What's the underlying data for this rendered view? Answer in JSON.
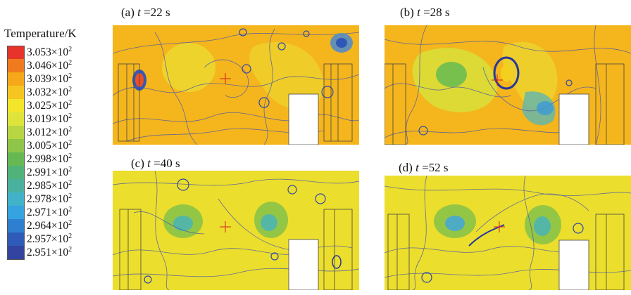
{
  "legend": {
    "title": "Temperature/K",
    "levels": [
      {
        "mantissa": "3.053",
        "exp": "2",
        "color": "#e8332a"
      },
      {
        "mantissa": "3.046",
        "exp": "2",
        "color": "#f07a1e"
      },
      {
        "mantissa": "3.039",
        "exp": "2",
        "color": "#f7a81a"
      },
      {
        "mantissa": "3.032",
        "exp": "2",
        "color": "#f5c622"
      },
      {
        "mantissa": "3.025",
        "exp": "2",
        "color": "#f3e62a"
      },
      {
        "mantissa": "3.019",
        "exp": "2",
        "color": "#dfe43a"
      },
      {
        "mantissa": "3.012",
        "exp": "2",
        "color": "#b7d642"
      },
      {
        "mantissa": "3.005",
        "exp": "2",
        "color": "#8fc548"
      },
      {
        "mantissa": "2.998",
        "exp": "2",
        "color": "#66b952"
      },
      {
        "mantissa": "2.991",
        "exp": "2",
        "color": "#51b279"
      },
      {
        "mantissa": "2.985",
        "exp": "2",
        "color": "#49b19e"
      },
      {
        "mantissa": "2.978",
        "exp": "2",
        "color": "#41b2c8"
      },
      {
        "mantissa": "2.971",
        "exp": "2",
        "color": "#34a3e0"
      },
      {
        "mantissa": "2.964",
        "exp": "2",
        "color": "#2e7fd0"
      },
      {
        "mantissa": "2.957",
        "exp": "2",
        "color": "#2f5ab8"
      },
      {
        "mantissa": "2.951",
        "exp": "2",
        "color": "#3344a0"
      }
    ]
  },
  "panels": [
    {
      "prefix": "(a) ",
      "var": "t",
      "value": " =22 s",
      "background": "#f5b51c"
    },
    {
      "prefix": "(b) ",
      "var": "t",
      "value": " =28 s",
      "background": "#f5b51c"
    },
    {
      "prefix": "(c) ",
      "var": "t",
      "value": " =40 s",
      "background": "#ecde2c"
    },
    {
      "prefix": "(d) ",
      "var": "t",
      "value": " =52 s",
      "background": "#ecde2c"
    }
  ]
}
